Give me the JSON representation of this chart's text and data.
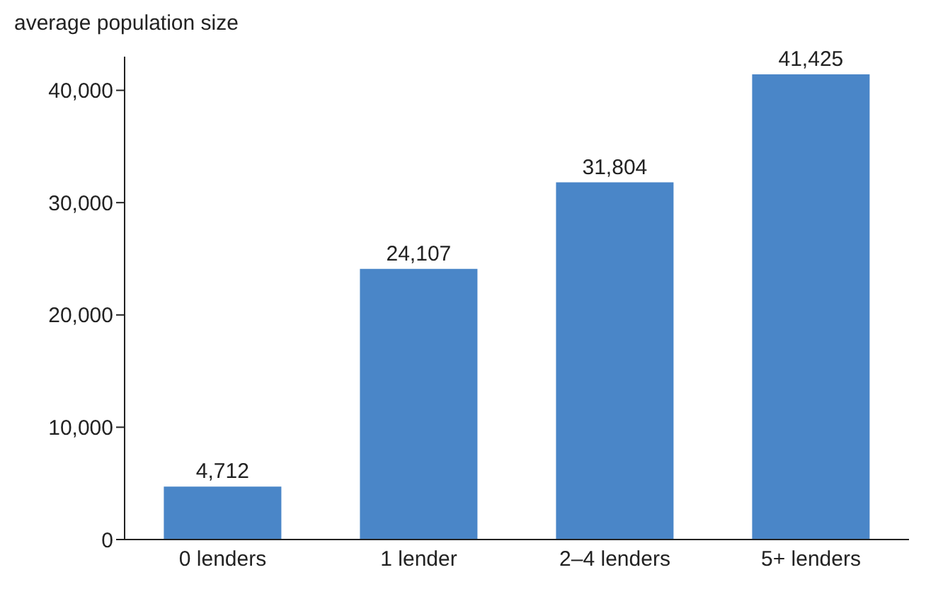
{
  "chart_data": {
    "type": "bar",
    "ylabel": "average population size",
    "categories": [
      "0 lenders",
      "1 lender",
      "2–4 lenders",
      "5+ lenders"
    ],
    "values": [
      4712,
      24107,
      31804,
      41425
    ],
    "color": "#4a86c8",
    "value_labels": [
      "4,712",
      "24,107",
      "31,804",
      "41,425"
    ],
    "ylim": [
      0,
      43000
    ],
    "yticks": [
      {
        "value": 0,
        "label": "0"
      },
      {
        "value": 10000,
        "label": "10,000"
      },
      {
        "value": 20000,
        "label": "20,000"
      },
      {
        "value": 30000,
        "label": "30,000"
      },
      {
        "value": 40000,
        "label": "40,000"
      }
    ],
    "grid": false
  }
}
